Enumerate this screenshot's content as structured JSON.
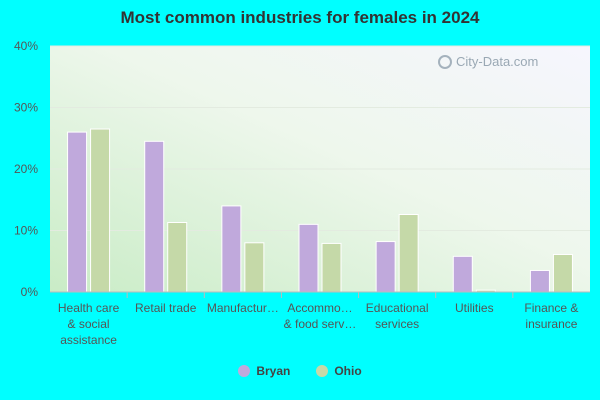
{
  "chart_data": {
    "type": "bar",
    "title": "Most common industries for females in 2024",
    "categories": [
      [
        "Health care",
        "& social",
        "assistance"
      ],
      [
        "Retail trade"
      ],
      [
        "Manufactur…"
      ],
      [
        "Accommo…",
        "& food serv…"
      ],
      [
        "Educational",
        "services"
      ],
      [
        "Utilities"
      ],
      [
        "Finance &",
        "insurance"
      ]
    ],
    "series": [
      {
        "name": "Bryan",
        "color": "#c0a9dc",
        "values": [
          26.0,
          24.5,
          14.0,
          11.0,
          8.2,
          5.8,
          3.5
        ]
      },
      {
        "name": "Ohio",
        "color": "#c5d9a8",
        "values": [
          26.5,
          11.3,
          8.0,
          7.9,
          12.6,
          0.3,
          6.1
        ]
      }
    ],
    "ylim": [
      0,
      40
    ],
    "yticks": [
      "0%",
      "10%",
      "20%",
      "30%",
      "40%"
    ],
    "ytick_values": [
      0,
      10,
      20,
      30,
      40
    ],
    "grid": true,
    "legend": "bottom-center"
  },
  "watermark": "City-Data.com"
}
